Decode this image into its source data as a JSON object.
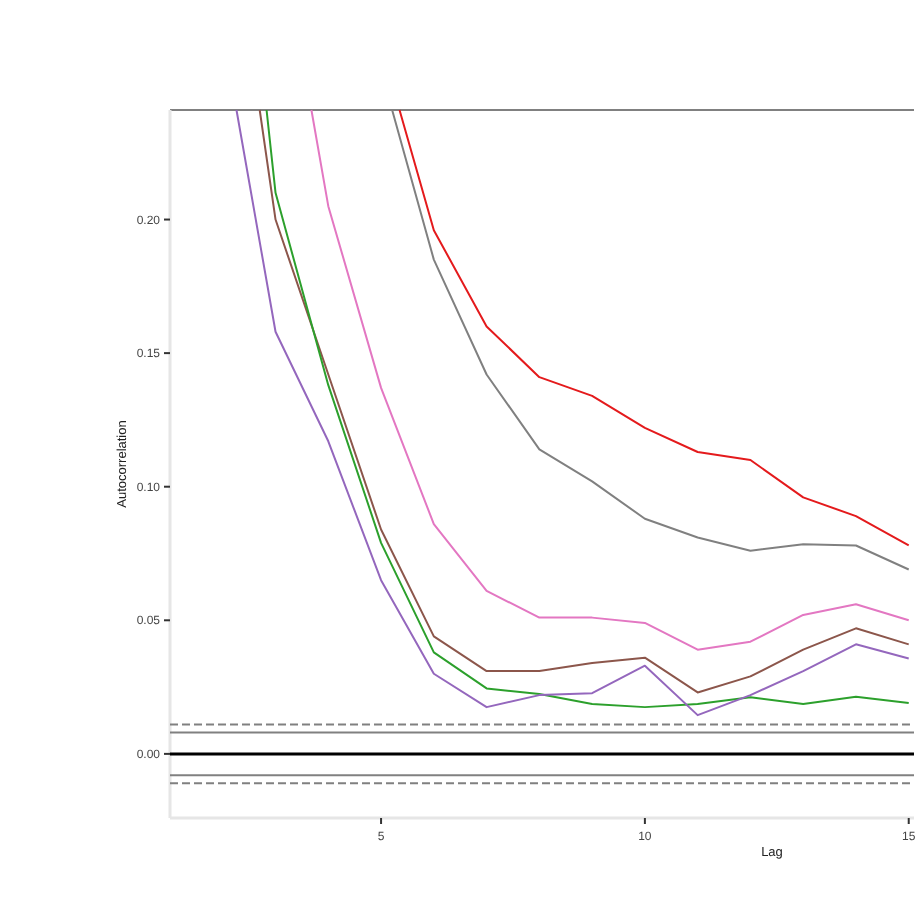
{
  "chart_data": {
    "type": "line",
    "xlabel": "Lag",
    "ylabel": "Autocorrelation",
    "xlim": [
      1,
      15.1
    ],
    "ylim": [
      -0.024,
      0.241
    ],
    "xticks": [
      5,
      10,
      15
    ],
    "yticks": [
      {
        "value": 0,
        "label": "0.00"
      },
      {
        "value": 0.05,
        "label": "0.05"
      },
      {
        "value": 0.1,
        "label": "0.10"
      },
      {
        "value": 0.15,
        "label": "0.15"
      },
      {
        "value": 0.2,
        "label": "0.20"
      }
    ],
    "grid": false,
    "marker": "none",
    "line_style": "solid",
    "ref_lines": [
      {
        "axis": "y",
        "value": 0,
        "color": "#000000",
        "line_style": "solid"
      },
      {
        "axis": "y",
        "value": 0.008,
        "color": "#808080",
        "line_style": "solid"
      },
      {
        "axis": "y",
        "value": -0.008,
        "color": "#808080",
        "line_style": "solid"
      },
      {
        "axis": "y",
        "value": 0.011,
        "color": "#808080",
        "line_style": "dashed"
      },
      {
        "axis": "y",
        "value": -0.011,
        "color": "#808080",
        "line_style": "dashed"
      }
    ],
    "series": [
      {
        "color": "#e41a1c",
        "x": [
          5.35,
          6,
          7,
          8,
          9,
          10,
          11,
          12,
          13,
          14,
          15
        ],
        "values": [
          0.241,
          0.196,
          0.16,
          0.141,
          0.134,
          0.122,
          0.113,
          0.11,
          0.096,
          0.089,
          0.078
        ]
      },
      {
        "color": "#808080",
        "x": [
          5.21,
          6,
          7,
          8,
          9,
          10,
          11,
          12,
          13,
          14,
          15
        ],
        "values": [
          0.241,
          0.185,
          0.142,
          0.114,
          0.102,
          0.088,
          0.081,
          0.076,
          0.0785,
          0.078,
          0.069
        ]
      },
      {
        "color": "#e377c2",
        "x": [
          3.68,
          4,
          5,
          6,
          7,
          8,
          9,
          10,
          11,
          12,
          13,
          14,
          15
        ],
        "values": [
          0.241,
          0.205,
          0.137,
          0.086,
          0.061,
          0.051,
          0.051,
          0.049,
          0.039,
          0.042,
          0.052,
          0.056,
          0.05
        ]
      },
      {
        "color": "#8c564b",
        "x": [
          2.7,
          3,
          4,
          5,
          6,
          7,
          8,
          9,
          10,
          11,
          12,
          13,
          14,
          15
        ],
        "values": [
          0.241,
          0.2,
          0.142,
          0.084,
          0.044,
          0.031,
          0.031,
          0.034,
          0.036,
          0.023,
          0.029,
          0.039,
          0.047,
          0.041
        ]
      },
      {
        "color": "#2ca02c",
        "x": [
          2.83,
          3,
          4,
          5,
          6,
          7,
          8,
          9,
          10,
          11,
          12,
          13,
          14,
          15
        ],
        "values": [
          0.241,
          0.21,
          0.138,
          0.079,
          0.038,
          0.0245,
          0.0224,
          0.0187,
          0.0175,
          0.0187,
          0.0212,
          0.0187,
          0.0214,
          0.019
        ]
      },
      {
        "color": "#9467bd",
        "x": [
          2.26,
          3,
          4,
          5,
          6,
          7,
          8,
          9,
          10,
          11,
          12,
          13,
          14,
          15
        ],
        "values": [
          0.241,
          0.158,
          0.117,
          0.065,
          0.03,
          0.0175,
          0.022,
          0.0227,
          0.033,
          0.0145,
          0.022,
          0.031,
          0.041,
          0.0357
        ]
      }
    ]
  }
}
